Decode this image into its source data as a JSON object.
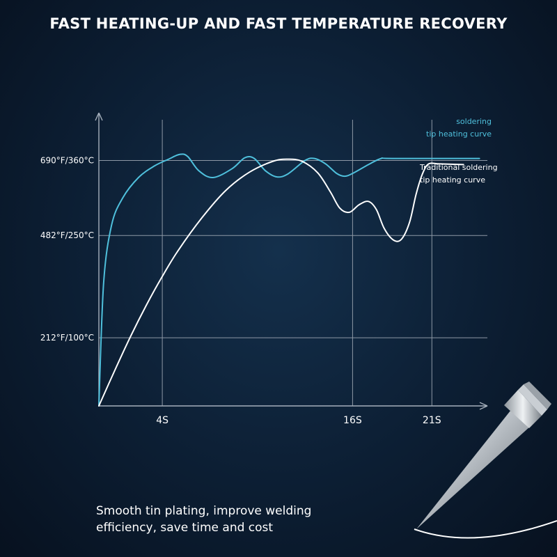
{
  "headline": "FAST HEATING-UP AND FAST TEMPERATURE RECOVERY",
  "tagline_line1": "Smooth tin plating, improve welding",
  "tagline_line2": "efficiency, save time and cost",
  "colors": {
    "fast_curve": "#4fc0dc",
    "traditional_curve": "#ffffff",
    "grid": "#8e99a6",
    "background": "#0c1e33"
  },
  "chart_data": {
    "type": "line",
    "title": "FAST HEATING-UP AND FAST TEMPERATURE RECOVERY",
    "xlabel": "",
    "ylabel": "",
    "x_ticks": [
      {
        "value": 4,
        "label": "4S"
      },
      {
        "value": 16,
        "label": "16S"
      },
      {
        "value": 21,
        "label": "21S"
      }
    ],
    "y_ticks": [
      {
        "value": 100,
        "label": "212°F/100°C"
      },
      {
        "value": 250,
        "label": "482°F/250°C"
      },
      {
        "value": 360,
        "label": "690°F/360°C"
      }
    ],
    "xlim": [
      0,
      24.5
    ],
    "ylim": [
      0,
      430
    ],
    "grid": true,
    "series": [
      {
        "name": "soldering tip heating curve",
        "label_lines": [
          "soldering",
          "tip heating curve"
        ],
        "color": "#4fc0dc",
        "points": [
          [
            0,
            0
          ],
          [
            0.3,
            180
          ],
          [
            0.8,
            265
          ],
          [
            1.5,
            305
          ],
          [
            2.5,
            335
          ],
          [
            3.5,
            352
          ],
          [
            4.4,
            362
          ],
          [
            5.1,
            369
          ],
          [
            5.6,
            366
          ],
          [
            6.3,
            345
          ],
          [
            7.2,
            335
          ],
          [
            8.4,
            348
          ],
          [
            9.2,
            364
          ],
          [
            9.8,
            363
          ],
          [
            10.5,
            345
          ],
          [
            11.2,
            336
          ],
          [
            11.9,
            340
          ],
          [
            13.0,
            360
          ],
          [
            13.6,
            363
          ],
          [
            14.3,
            355
          ],
          [
            15.0,
            341
          ],
          [
            15.5,
            337
          ],
          [
            16.0,
            341
          ],
          [
            17.0,
            354
          ],
          [
            17.8,
            363
          ],
          [
            18.5,
            363
          ],
          [
            24,
            363
          ]
        ]
      },
      {
        "name": "Traditional soldering tip heating curve",
        "label_lines": [
          "Traditional soldering",
          "tip heating curve"
        ],
        "color": "#ffffff",
        "points": [
          [
            0,
            0
          ],
          [
            1.0,
            52
          ],
          [
            2.0,
            102
          ],
          [
            3.0,
            148
          ],
          [
            4.0,
            190
          ],
          [
            5.0,
            228
          ],
          [
            6.5,
            276
          ],
          [
            8.0,
            316
          ],
          [
            9.5,
            343
          ],
          [
            11.0,
            359
          ],
          [
            11.9,
            362
          ],
          [
            12.8,
            359
          ],
          [
            13.8,
            342
          ],
          [
            14.6,
            314
          ],
          [
            15.2,
            290
          ],
          [
            15.8,
            284
          ],
          [
            16.4,
            295
          ],
          [
            17.0,
            300
          ],
          [
            17.5,
            288
          ],
          [
            18.0,
            260
          ],
          [
            18.6,
            243
          ],
          [
            19.1,
            245
          ],
          [
            19.6,
            270
          ],
          [
            20.0,
            310
          ],
          [
            20.4,
            340
          ],
          [
            20.8,
            355
          ],
          [
            21.5,
            355
          ],
          [
            23.0,
            354
          ]
        ]
      }
    ]
  }
}
